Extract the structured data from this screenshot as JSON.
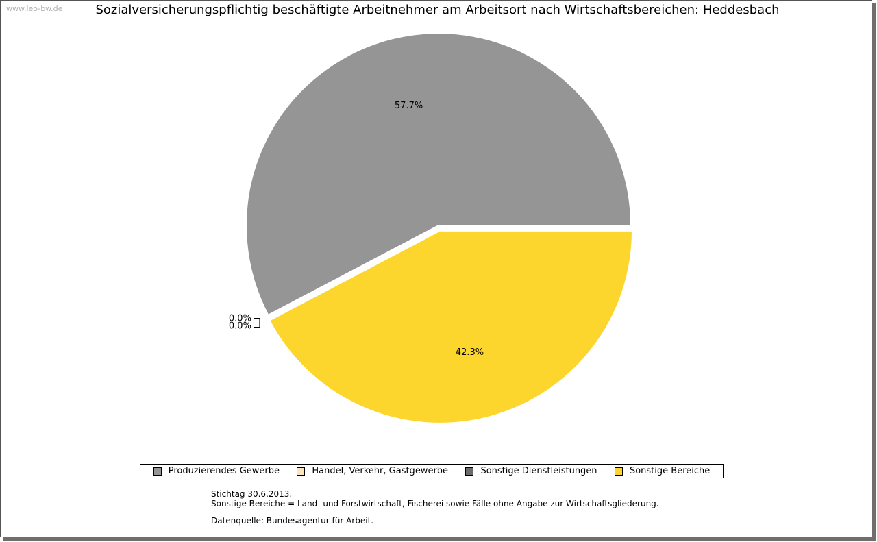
{
  "watermark": "www.leo-bw.de",
  "chart_data": {
    "type": "pie",
    "title": "Sozialversicherungspflichtig beschäftigte Arbeitnehmer am Arbeitsort nach Wirtschaftsbereichen: Heddesbach",
    "slices": [
      {
        "name": "Produzierendes Gewerbe",
        "value": 57.7,
        "label": "57.7%",
        "color": "#959595"
      },
      {
        "name": "Handel, Verkehr, Gastgewerbe",
        "value": 0.0,
        "label": "0.0%",
        "color": "#fbe6c0"
      },
      {
        "name": "Sonstige Dienstleistungen",
        "value": 0.0,
        "label": "0.0%",
        "color": "#6b6b6b"
      },
      {
        "name": "Sonstige Bereiche",
        "value": 42.3,
        "label": "42.3%",
        "color": "#fcd62c"
      }
    ],
    "legend_position": "bottom"
  },
  "notes": {
    "line1": "Stichtag 30.6.2013.",
    "line2": "Sonstige Bereiche = Land- und Forstwirtschaft, Fischerei sowie Fälle ohne Angabe zur Wirtschaftsgliederung.",
    "line3": "Datenquelle: Bundesagentur für Arbeit."
  }
}
